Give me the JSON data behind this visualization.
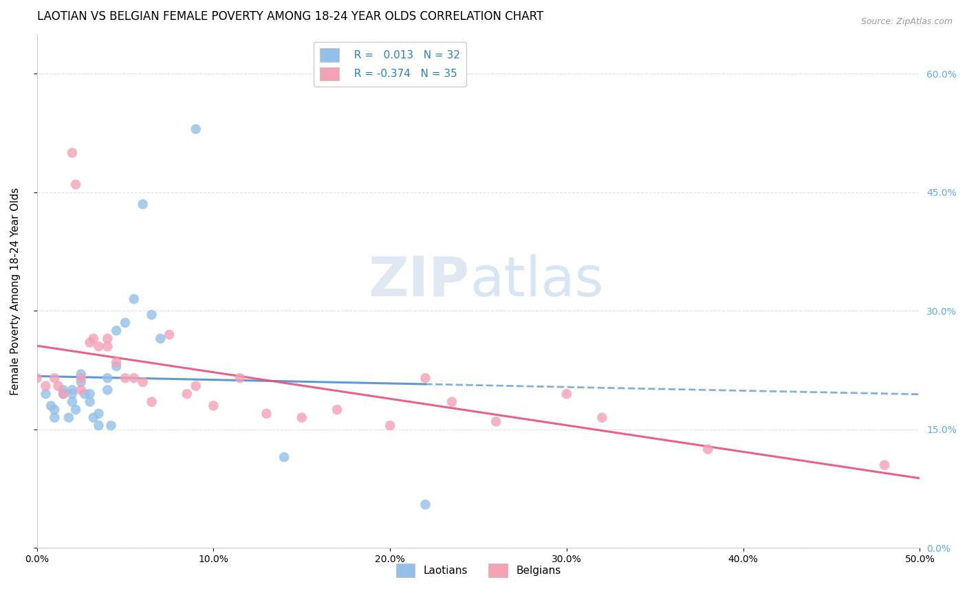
{
  "title": "LAOTIAN VS BELGIAN FEMALE POVERTY AMONG 18-24 YEAR OLDS CORRELATION CHART",
  "source": "Source: ZipAtlas.com",
  "ylabel": "Female Poverty Among 18-24 Year Olds",
  "xlim": [
    0.0,
    0.5
  ],
  "ylim": [
    0.0,
    0.65
  ],
  "x_ticks": [
    0.0,
    0.1,
    0.2,
    0.3,
    0.4,
    0.5
  ],
  "x_tick_labels": [
    "0.0%",
    "10.0%",
    "20.0%",
    "30.0%",
    "40.0%",
    "50.0%"
  ],
  "y_ticks": [
    0.0,
    0.15,
    0.3,
    0.45,
    0.6
  ],
  "y_tick_labels": [
    "0.0%",
    "15.0%",
    "30.0%",
    "45.0%",
    "60.0%"
  ],
  "laotian_color": "#92C0E8",
  "belgian_color": "#F4A0B5",
  "laotian_line_color": "#4A8FCC",
  "belgian_line_color": "#E8507A",
  "laotian_R": "0.013",
  "laotian_N": "32",
  "belgian_R": "-0.374",
  "belgian_N": "35",
  "laotian_x": [
    0.005,
    0.008,
    0.01,
    0.01,
    0.015,
    0.015,
    0.018,
    0.02,
    0.02,
    0.02,
    0.022,
    0.025,
    0.025,
    0.027,
    0.03,
    0.03,
    0.032,
    0.035,
    0.035,
    0.04,
    0.04,
    0.042,
    0.045,
    0.045,
    0.05,
    0.055,
    0.06,
    0.065,
    0.07,
    0.09,
    0.14,
    0.22
  ],
  "laotian_y": [
    0.195,
    0.18,
    0.175,
    0.165,
    0.2,
    0.195,
    0.165,
    0.2,
    0.195,
    0.185,
    0.175,
    0.22,
    0.21,
    0.195,
    0.195,
    0.185,
    0.165,
    0.17,
    0.155,
    0.215,
    0.2,
    0.155,
    0.275,
    0.23,
    0.285,
    0.315,
    0.435,
    0.295,
    0.265,
    0.53,
    0.115,
    0.055
  ],
  "belgian_x": [
    0.0,
    0.005,
    0.01,
    0.012,
    0.015,
    0.02,
    0.022,
    0.025,
    0.025,
    0.03,
    0.032,
    0.035,
    0.04,
    0.04,
    0.045,
    0.05,
    0.055,
    0.06,
    0.065,
    0.075,
    0.085,
    0.09,
    0.1,
    0.115,
    0.13,
    0.15,
    0.17,
    0.2,
    0.22,
    0.235,
    0.26,
    0.3,
    0.32,
    0.38,
    0.48
  ],
  "belgian_y": [
    0.215,
    0.205,
    0.215,
    0.205,
    0.195,
    0.5,
    0.46,
    0.215,
    0.2,
    0.26,
    0.265,
    0.255,
    0.265,
    0.255,
    0.235,
    0.215,
    0.215,
    0.21,
    0.185,
    0.27,
    0.195,
    0.205,
    0.18,
    0.215,
    0.17,
    0.165,
    0.175,
    0.155,
    0.215,
    0.185,
    0.16,
    0.195,
    0.165,
    0.125,
    0.105
  ],
  "grid_color": "#DDDDDD",
  "background_color": "#FFFFFF",
  "right_axis_color": "#5AAFE0",
  "title_fontsize": 12,
  "label_fontsize": 11,
  "tick_fontsize": 10,
  "legend_fontsize": 11
}
